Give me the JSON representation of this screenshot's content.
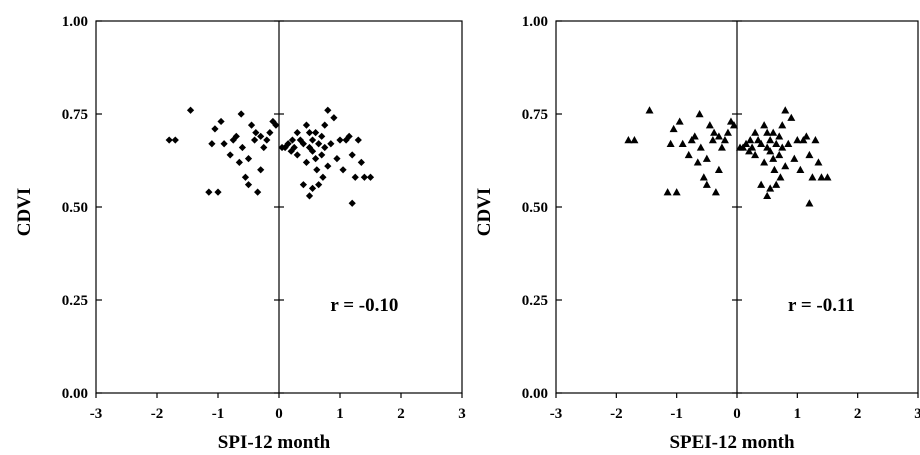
{
  "chart_data": [
    {
      "type": "scatter",
      "marker": "diamond",
      "xlabel": "SPI-12 month",
      "ylabel": "CDVI",
      "xlim": [
        -3,
        3
      ],
      "ylim": [
        0,
        1
      ],
      "x_ticks": [
        "-3",
        "-2",
        "-1",
        "0",
        "1",
        "2",
        "3"
      ],
      "y_ticks": [
        "0.00",
        "0.25",
        "0.50",
        "0.75",
        "1.00"
      ],
      "annotation": "r = -0.10",
      "points": [
        [
          -1.8,
          0.68
        ],
        [
          -1.7,
          0.68
        ],
        [
          -1.45,
          0.76
        ],
        [
          -1.15,
          0.54
        ],
        [
          -1.0,
          0.54
        ],
        [
          -1.1,
          0.67
        ],
        [
          -1.05,
          0.71
        ],
        [
          -0.95,
          0.73
        ],
        [
          -0.9,
          0.67
        ],
        [
          -0.8,
          0.64
        ],
        [
          -0.75,
          0.68
        ],
        [
          -0.7,
          0.69
        ],
        [
          -0.65,
          0.62
        ],
        [
          -0.62,
          0.75
        ],
        [
          -0.6,
          0.66
        ],
        [
          -0.55,
          0.58
        ],
        [
          -0.5,
          0.63
        ],
        [
          -0.5,
          0.56
        ],
        [
          -0.45,
          0.72
        ],
        [
          -0.4,
          0.68
        ],
        [
          -0.38,
          0.7
        ],
        [
          -0.35,
          0.54
        ],
        [
          -0.3,
          0.69
        ],
        [
          -0.3,
          0.6
        ],
        [
          -0.25,
          0.66
        ],
        [
          -0.2,
          0.68
        ],
        [
          -0.15,
          0.7
        ],
        [
          -0.1,
          0.73
        ],
        [
          -0.05,
          0.72
        ],
        [
          0.05,
          0.66
        ],
        [
          0.1,
          0.66
        ],
        [
          0.15,
          0.67
        ],
        [
          0.2,
          0.65
        ],
        [
          0.22,
          0.68
        ],
        [
          0.25,
          0.66
        ],
        [
          0.3,
          0.64
        ],
        [
          0.3,
          0.7
        ],
        [
          0.35,
          0.68
        ],
        [
          0.4,
          0.67
        ],
        [
          0.4,
          0.56
        ],
        [
          0.45,
          0.62
        ],
        [
          0.45,
          0.72
        ],
        [
          0.5,
          0.66
        ],
        [
          0.5,
          0.7
        ],
        [
          0.5,
          0.53
        ],
        [
          0.55,
          0.68
        ],
        [
          0.55,
          0.65
        ],
        [
          0.55,
          0.55
        ],
        [
          0.6,
          0.63
        ],
        [
          0.6,
          0.7
        ],
        [
          0.62,
          0.6
        ],
        [
          0.65,
          0.67
        ],
        [
          0.65,
          0.56
        ],
        [
          0.7,
          0.69
        ],
        [
          0.7,
          0.64
        ],
        [
          0.72,
          0.58
        ],
        [
          0.75,
          0.72
        ],
        [
          0.75,
          0.66
        ],
        [
          0.8,
          0.61
        ],
        [
          0.8,
          0.76
        ],
        [
          0.85,
          0.67
        ],
        [
          0.9,
          0.74
        ],
        [
          0.95,
          0.63
        ],
        [
          1.0,
          0.68
        ],
        [
          1.05,
          0.6
        ],
        [
          1.1,
          0.68
        ],
        [
          1.15,
          0.69
        ],
        [
          1.2,
          0.64
        ],
        [
          1.2,
          0.51
        ],
        [
          1.25,
          0.58
        ],
        [
          1.3,
          0.68
        ],
        [
          1.35,
          0.62
        ],
        [
          1.4,
          0.58
        ],
        [
          1.5,
          0.58
        ]
      ]
    },
    {
      "type": "scatter",
      "marker": "triangle",
      "xlabel": "SPEI-12 month",
      "ylabel": "CDVI",
      "xlim": [
        -3,
        3
      ],
      "ylim": [
        0,
        1
      ],
      "x_ticks": [
        "-3",
        "-2",
        "-1",
        "0",
        "1",
        "2",
        "3"
      ],
      "y_ticks": [
        "0.00",
        "0.25",
        "0.50",
        "0.75",
        "1.00"
      ],
      "annotation": "r = -0.11",
      "points": [
        [
          -1.8,
          0.68
        ],
        [
          -1.7,
          0.68
        ],
        [
          -1.45,
          0.76
        ],
        [
          -1.15,
          0.54
        ],
        [
          -1.0,
          0.54
        ],
        [
          -1.1,
          0.67
        ],
        [
          -1.05,
          0.71
        ],
        [
          -0.95,
          0.73
        ],
        [
          -0.9,
          0.67
        ],
        [
          -0.8,
          0.64
        ],
        [
          -0.75,
          0.68
        ],
        [
          -0.7,
          0.69
        ],
        [
          -0.65,
          0.62
        ],
        [
          -0.62,
          0.75
        ],
        [
          -0.6,
          0.66
        ],
        [
          -0.55,
          0.58
        ],
        [
          -0.5,
          0.63
        ],
        [
          -0.5,
          0.56
        ],
        [
          -0.45,
          0.72
        ],
        [
          -0.4,
          0.68
        ],
        [
          -0.38,
          0.7
        ],
        [
          -0.35,
          0.54
        ],
        [
          -0.3,
          0.69
        ],
        [
          -0.3,
          0.6
        ],
        [
          -0.25,
          0.66
        ],
        [
          -0.2,
          0.68
        ],
        [
          -0.15,
          0.7
        ],
        [
          -0.1,
          0.73
        ],
        [
          -0.05,
          0.72
        ],
        [
          0.05,
          0.66
        ],
        [
          0.1,
          0.66
        ],
        [
          0.15,
          0.67
        ],
        [
          0.2,
          0.65
        ],
        [
          0.22,
          0.68
        ],
        [
          0.25,
          0.66
        ],
        [
          0.3,
          0.64
        ],
        [
          0.3,
          0.7
        ],
        [
          0.35,
          0.68
        ],
        [
          0.4,
          0.67
        ],
        [
          0.4,
          0.56
        ],
        [
          0.45,
          0.62
        ],
        [
          0.45,
          0.72
        ],
        [
          0.5,
          0.66
        ],
        [
          0.5,
          0.7
        ],
        [
          0.5,
          0.53
        ],
        [
          0.55,
          0.68
        ],
        [
          0.55,
          0.65
        ],
        [
          0.55,
          0.55
        ],
        [
          0.6,
          0.63
        ],
        [
          0.6,
          0.7
        ],
        [
          0.62,
          0.6
        ],
        [
          0.65,
          0.67
        ],
        [
          0.65,
          0.56
        ],
        [
          0.7,
          0.69
        ],
        [
          0.7,
          0.64
        ],
        [
          0.72,
          0.58
        ],
        [
          0.75,
          0.72
        ],
        [
          0.75,
          0.66
        ],
        [
          0.8,
          0.61
        ],
        [
          0.8,
          0.76
        ],
        [
          0.85,
          0.67
        ],
        [
          0.9,
          0.74
        ],
        [
          0.95,
          0.63
        ],
        [
          1.0,
          0.68
        ],
        [
          1.05,
          0.6
        ],
        [
          1.1,
          0.68
        ],
        [
          1.15,
          0.69
        ],
        [
          1.2,
          0.64
        ],
        [
          1.2,
          0.51
        ],
        [
          1.25,
          0.58
        ],
        [
          1.3,
          0.68
        ],
        [
          1.35,
          0.62
        ],
        [
          1.4,
          0.58
        ],
        [
          1.5,
          0.58
        ]
      ]
    }
  ]
}
